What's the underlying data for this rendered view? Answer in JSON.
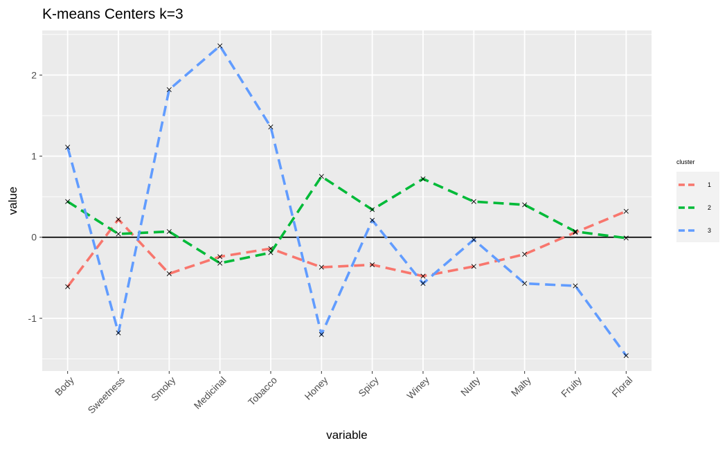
{
  "chart_data": {
    "type": "line",
    "title": "K-means Centers k=3",
    "xlabel": "variable",
    "ylabel": "value",
    "categories": [
      "Body",
      "Sweetness",
      "Smoky",
      "Medicinal",
      "Tobacco",
      "Honey",
      "Spicy",
      "Winey",
      "Nutty",
      "Malty",
      "Fruity",
      "Floral"
    ],
    "ylim": [
      -1.65,
      2.55
    ],
    "yticks": [
      -1,
      0,
      1,
      2
    ],
    "grid": true,
    "reference_line": 0,
    "legend": {
      "title": "cluster",
      "position": "right"
    },
    "series": [
      {
        "name": "1",
        "color": "#F8766D",
        "values": [
          -0.61,
          0.22,
          -0.45,
          -0.24,
          -0.14,
          -0.37,
          -0.34,
          -0.48,
          -0.36,
          -0.21,
          0.06,
          0.32
        ]
      },
      {
        "name": "2",
        "color": "#00BA38",
        "values": [
          0.44,
          0.04,
          0.07,
          -0.32,
          -0.19,
          0.75,
          0.34,
          0.72,
          0.44,
          0.4,
          0.07,
          -0.01
        ]
      },
      {
        "name": "3",
        "color": "#619CFF",
        "values": [
          1.11,
          -1.18,
          1.82,
          2.36,
          1.36,
          -1.2,
          0.21,
          -0.57,
          -0.03,
          -0.57,
          -0.6,
          -1.46
        ]
      }
    ]
  }
}
